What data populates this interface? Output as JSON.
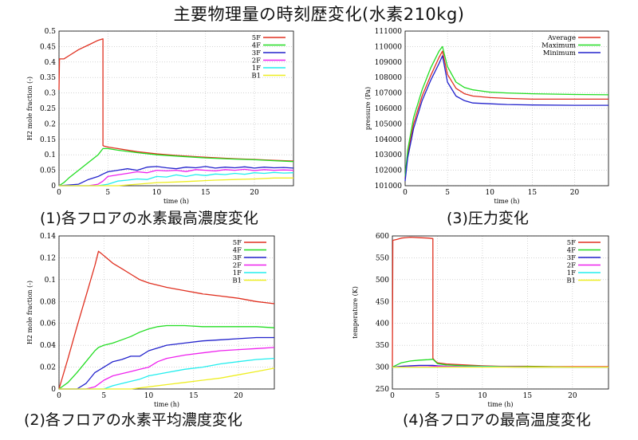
{
  "title": "主要物理量の時刻歴変化(水素210kg)",
  "colors": {
    "5F": "#e03020",
    "4F": "#22dd22",
    "3F": "#2222cc",
    "2F": "#ee22ee",
    "1F": "#22eeee",
    "B1": "#eeee22",
    "Average": "#e03020",
    "Maximum": "#22dd22",
    "Minimum": "#2222cc"
  },
  "chart_data": [
    {
      "id": "c1",
      "type": "line",
      "caption": "(1)各フロアの水素最高濃度変化",
      "xlabel": "time (h)",
      "ylabel": "H2 mole fraction (-)",
      "xlim": [
        0,
        24
      ],
      "ylim": [
        0,
        0.5
      ],
      "xticks": [
        0,
        5,
        10,
        15,
        20
      ],
      "yticks": [
        0,
        0.05,
        0.1,
        0.15,
        0.2,
        0.25,
        0.3,
        0.35,
        0.4,
        0.45,
        0.5
      ],
      "grid": true,
      "legend_position": "top-right",
      "series": [
        {
          "name": "5F",
          "x": [
            0,
            0.05,
            0.5,
            1,
            2,
            3,
            4,
            4.5,
            4.5,
            4.6,
            5,
            6,
            8,
            10,
            12,
            15,
            18,
            20,
            22,
            24
          ],
          "y": [
            0.31,
            0.41,
            0.41,
            0.42,
            0.44,
            0.455,
            0.47,
            0.475,
            0.13,
            0.128,
            0.125,
            0.12,
            0.11,
            0.103,
            0.098,
            0.092,
            0.087,
            0.085,
            0.082,
            0.08
          ]
        },
        {
          "name": "4F",
          "x": [
            0,
            0.5,
            1,
            2,
            3,
            4,
            4.5,
            5,
            6,
            8,
            10,
            12,
            15,
            18,
            20,
            22,
            24
          ],
          "y": [
            0,
            0.01,
            0.025,
            0.05,
            0.075,
            0.1,
            0.12,
            0.12,
            0.115,
            0.107,
            0.1,
            0.096,
            0.09,
            0.086,
            0.084,
            0.081,
            0.078
          ]
        },
        {
          "name": "3F",
          "x": [
            0,
            2,
            3,
            4,
            4.5,
            5,
            6,
            7,
            8,
            9,
            10,
            11,
            12,
            13,
            14,
            15,
            16,
            17,
            18,
            19,
            20,
            21,
            22,
            23,
            24
          ],
          "y": [
            0,
            0.005,
            0.02,
            0.03,
            0.038,
            0.045,
            0.05,
            0.055,
            0.05,
            0.06,
            0.062,
            0.058,
            0.055,
            0.06,
            0.058,
            0.062,
            0.057,
            0.06,
            0.058,
            0.061,
            0.057,
            0.06,
            0.058,
            0.059,
            0.057
          ]
        },
        {
          "name": "2F",
          "x": [
            0,
            3,
            4,
            4.5,
            5,
            6,
            7,
            8,
            9,
            10,
            11,
            12,
            13,
            14,
            15,
            16,
            17,
            18,
            19,
            20,
            21,
            22,
            23,
            24
          ],
          "y": [
            0,
            0,
            0.005,
            0.015,
            0.03,
            0.035,
            0.04,
            0.045,
            0.042,
            0.05,
            0.048,
            0.05,
            0.046,
            0.052,
            0.05,
            0.048,
            0.052,
            0.05,
            0.053,
            0.049,
            0.052,
            0.05,
            0.051,
            0.05
          ]
        },
        {
          "name": "1F",
          "x": [
            0,
            4,
            5,
            6,
            7,
            8,
            9,
            10,
            11,
            12,
            13,
            14,
            15,
            16,
            17,
            18,
            19,
            20,
            21,
            22,
            23,
            24
          ],
          "y": [
            0,
            0,
            0.005,
            0.015,
            0.018,
            0.022,
            0.02,
            0.03,
            0.028,
            0.035,
            0.03,
            0.036,
            0.033,
            0.038,
            0.036,
            0.04,
            0.037,
            0.042,
            0.04,
            0.043,
            0.041,
            0.042
          ]
        },
        {
          "name": "B1",
          "x": [
            0,
            6,
            8,
            10,
            12,
            14,
            16,
            18,
            20,
            22,
            24
          ],
          "y": [
            0,
            0,
            0.005,
            0.01,
            0.012,
            0.015,
            0.018,
            0.02,
            0.022,
            0.025,
            0.025
          ]
        }
      ]
    },
    {
      "id": "c3",
      "type": "line",
      "caption": "(3)圧力変化",
      "xlabel": "time (h)",
      "ylabel": "pressure (Pa)",
      "xlim": [
        0,
        24
      ],
      "ylim": [
        101000,
        111000
      ],
      "xticks": [
        0,
        5,
        10,
        15,
        20
      ],
      "yticks": [
        101000,
        102000,
        103000,
        104000,
        105000,
        106000,
        107000,
        108000,
        109000,
        110000,
        111000
      ],
      "grid": true,
      "legend_position": "top-right",
      "series": [
        {
          "name": "Average",
          "x": [
            0,
            0.3,
            1,
            2,
            3,
            4,
            4.4,
            5,
            6,
            7,
            8,
            10,
            12,
            15,
            20,
            24
          ],
          "y": [
            101500,
            103000,
            105000,
            106800,
            108100,
            109300,
            109700,
            108200,
            107300,
            106950,
            106800,
            106700,
            106650,
            106600,
            106600,
            106600
          ]
        },
        {
          "name": "Maximum",
          "x": [
            0,
            0.3,
            1,
            2,
            3,
            4,
            4.4,
            5,
            6,
            7,
            8,
            10,
            12,
            15,
            20,
            24
          ],
          "y": [
            101600,
            103300,
            105400,
            107200,
            108600,
            109700,
            110000,
            108700,
            107700,
            107350,
            107200,
            107050,
            107000,
            106950,
            106900,
            106880
          ]
        },
        {
          "name": "Minimum",
          "x": [
            0,
            0.3,
            1,
            2,
            3,
            4,
            4.4,
            5,
            6,
            7,
            8,
            10,
            12,
            15,
            20,
            24
          ],
          "y": [
            101300,
            102800,
            104700,
            106500,
            107800,
            108900,
            109400,
            107700,
            106800,
            106500,
            106350,
            106300,
            106250,
            106220,
            106200,
            106200
          ]
        }
      ]
    },
    {
      "id": "c2",
      "type": "line",
      "caption": "(2)各フロアの水素平均濃度変化",
      "xlabel": "time (h)",
      "ylabel": "H2 mole fraction (-)",
      "xlim": [
        0,
        24
      ],
      "ylim": [
        0,
        0.14
      ],
      "xticks": [
        0,
        5,
        10,
        15,
        20
      ],
      "yticks": [
        0,
        0.02,
        0.04,
        0.06,
        0.08,
        0.1,
        0.12,
        0.14
      ],
      "grid": true,
      "legend_position": "top-right",
      "series": [
        {
          "name": "5F",
          "x": [
            0,
            1,
            2,
            3,
            4,
            4.4,
            5,
            6,
            7,
            8,
            9,
            10,
            12,
            14,
            16,
            18,
            20,
            22,
            24
          ],
          "y": [
            0,
            0.028,
            0.057,
            0.085,
            0.113,
            0.126,
            0.122,
            0.115,
            0.11,
            0.105,
            0.1,
            0.097,
            0.093,
            0.09,
            0.087,
            0.085,
            0.083,
            0.08,
            0.078
          ]
        },
        {
          "name": "4F",
          "x": [
            0,
            1,
            2,
            3,
            4,
            4.4,
            5,
            6,
            7,
            8,
            9,
            10,
            11,
            12,
            14,
            16,
            18,
            20,
            22,
            24
          ],
          "y": [
            0,
            0.006,
            0.015,
            0.025,
            0.035,
            0.038,
            0.04,
            0.042,
            0.045,
            0.048,
            0.052,
            0.055,
            0.057,
            0.058,
            0.058,
            0.057,
            0.057,
            0.057,
            0.057,
            0.056
          ]
        },
        {
          "name": "3F",
          "x": [
            0,
            2,
            3,
            4,
            5,
            6,
            7,
            8,
            9,
            10,
            12,
            14,
            16,
            18,
            20,
            22,
            24
          ],
          "y": [
            0,
            0,
            0.005,
            0.015,
            0.02,
            0.025,
            0.027,
            0.03,
            0.03,
            0.035,
            0.04,
            0.042,
            0.044,
            0.045,
            0.046,
            0.047,
            0.047
          ]
        },
        {
          "name": "2F",
          "x": [
            0,
            3,
            4,
            5,
            6,
            7,
            8,
            9,
            10,
            11,
            12,
            14,
            16,
            18,
            20,
            22,
            24
          ],
          "y": [
            0,
            0,
            0.002,
            0.008,
            0.012,
            0.014,
            0.016,
            0.018,
            0.02,
            0.025,
            0.028,
            0.031,
            0.033,
            0.035,
            0.036,
            0.037,
            0.038
          ]
        },
        {
          "name": "1F",
          "x": [
            0,
            5,
            6,
            7,
            8,
            9,
            10,
            12,
            14,
            16,
            18,
            20,
            22,
            24
          ],
          "y": [
            0,
            0,
            0.003,
            0.005,
            0.007,
            0.009,
            0.012,
            0.015,
            0.018,
            0.02,
            0.023,
            0.025,
            0.027,
            0.028
          ]
        },
        {
          "name": "B1",
          "x": [
            0,
            8,
            10,
            12,
            14,
            16,
            18,
            20,
            22,
            24
          ],
          "y": [
            0,
            0,
            0.002,
            0.004,
            0.006,
            0.008,
            0.01,
            0.013,
            0.016,
            0.019
          ]
        }
      ]
    },
    {
      "id": "c4",
      "type": "line",
      "caption": "(4)各フロアの最高温度変化",
      "xlabel": "time (h)",
      "ylabel": "temperature (K)",
      "xlim": [
        0,
        24
      ],
      "ylim": [
        250,
        600
      ],
      "xticks": [
        0,
        5,
        10,
        15,
        20
      ],
      "yticks": [
        250,
        300,
        350,
        400,
        450,
        500,
        550,
        600
      ],
      "grid": true,
      "legend_position": "top-right",
      "series": [
        {
          "name": "5F",
          "x": [
            0,
            0.05,
            0.5,
            1,
            2,
            3,
            4,
            4.5,
            4.5,
            4.7,
            5,
            6,
            8,
            10,
            12,
            15,
            18,
            20,
            22,
            24
          ],
          "y": [
            300,
            590,
            592,
            595,
            597,
            596,
            595,
            594,
            320,
            315,
            310,
            307,
            305,
            303,
            302,
            302,
            301,
            301,
            301,
            301
          ]
        },
        {
          "name": "4F",
          "x": [
            0,
            0.5,
            1,
            2,
            3,
            4,
            4.5,
            5,
            6,
            8,
            10,
            12,
            15,
            20,
            24
          ],
          "y": [
            300,
            305,
            310,
            314,
            316,
            317,
            318,
            308,
            305,
            303,
            302,
            301,
            301,
            300,
            300
          ]
        },
        {
          "name": "3F",
          "x": [
            0,
            1,
            2,
            3,
            4,
            4.5,
            5,
            6,
            8,
            10,
            15,
            20,
            24
          ],
          "y": [
            300,
            302,
            303,
            304,
            304,
            304,
            303,
            302,
            301,
            301,
            300,
            300,
            300
          ]
        },
        {
          "name": "2F",
          "x": [
            0,
            4,
            5,
            6,
            8,
            10,
            15,
            20,
            24
          ],
          "y": [
            300,
            301,
            302,
            302,
            301,
            301,
            300,
            300,
            300
          ]
        },
        {
          "name": "1F",
          "x": [
            0,
            5,
            10,
            15,
            20,
            24
          ],
          "y": [
            300,
            300,
            301,
            300,
            300,
            300
          ]
        },
        {
          "name": "B1",
          "x": [
            0,
            5,
            10,
            15,
            20,
            24
          ],
          "y": [
            300,
            300,
            300,
            300,
            300,
            300
          ]
        }
      ]
    }
  ]
}
